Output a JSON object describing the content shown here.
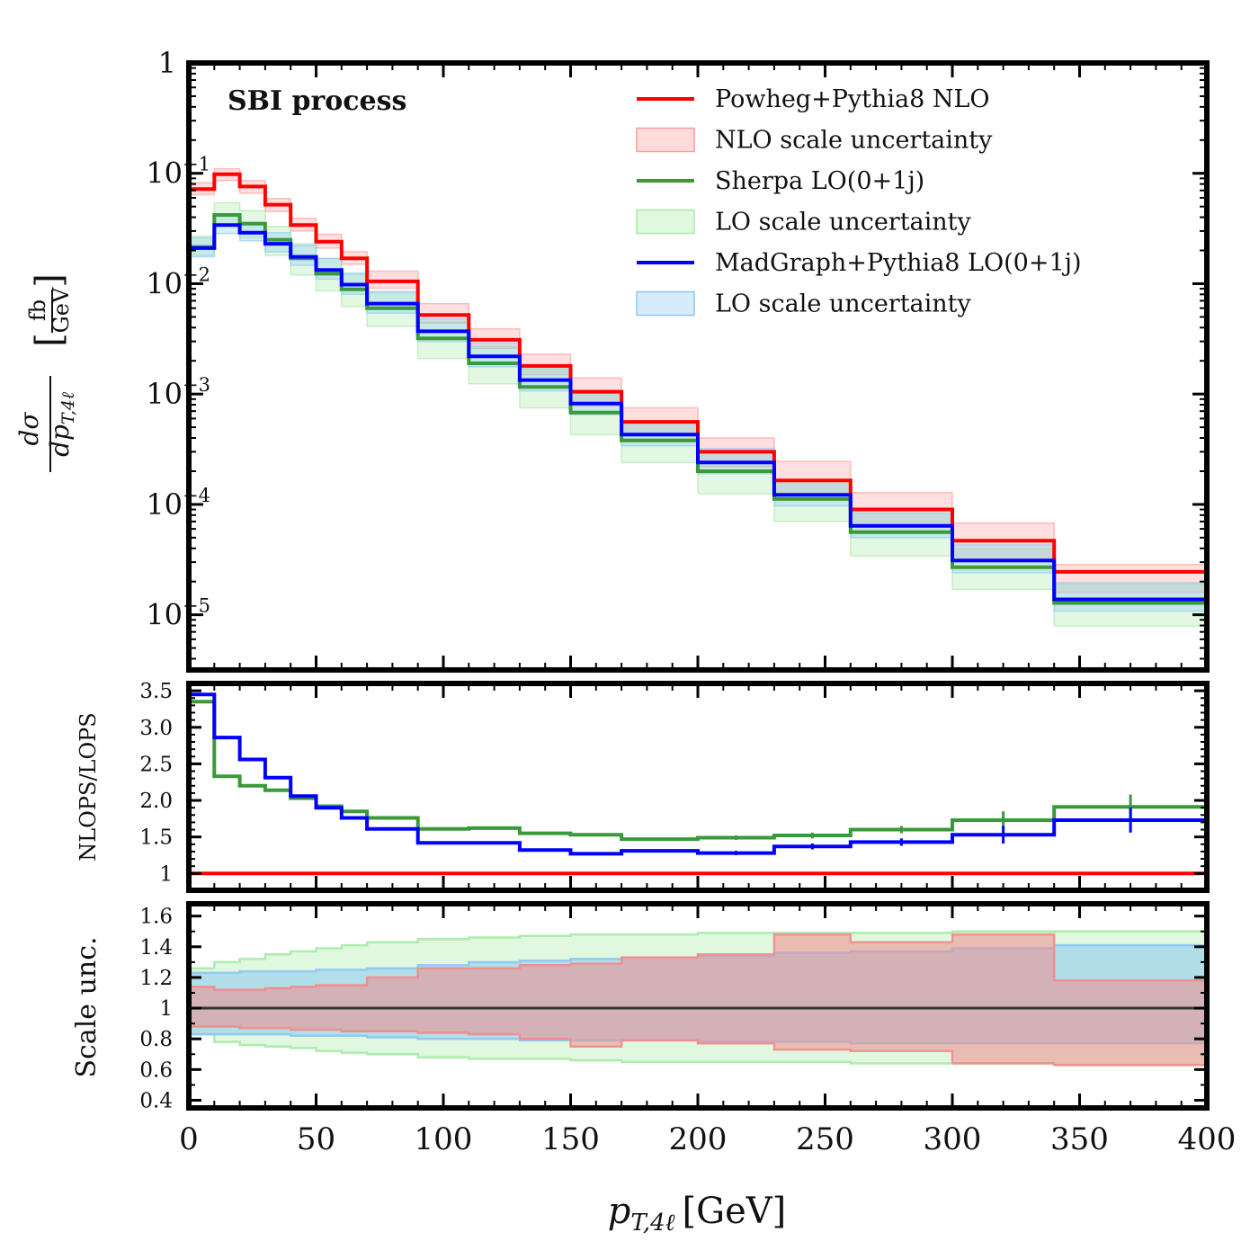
{
  "figure": {
    "xaxis_label": "p",
    "xaxis_label_sub": "T,4ℓ",
    "xaxis_label_unit": "[GeV]"
  },
  "chart_data": [
    {
      "type": "line",
      "title": "SBI process",
      "ylabel_num": "dσ",
      "ylabel_den": "dp",
      "ylabel_den_sub": "T,4ℓ",
      "ylabel_unit_num": "fb",
      "ylabel_unit_den": "GeV",
      "xlim": [
        0,
        400
      ],
      "ylim_log10": [
        -5.5,
        0
      ],
      "x_ticks": [
        0,
        50,
        100,
        150,
        200,
        250,
        300,
        350,
        400
      ],
      "x_tick_labels": [
        "0",
        "50",
        "100",
        "150",
        "200",
        "250",
        "300",
        "350",
        "400"
      ],
      "y_ticks": [
        {
          "value": 1,
          "label": "1",
          "exp": ""
        },
        {
          "value": 0.1,
          "label": "10",
          "exp": "−1"
        },
        {
          "value": 0.01,
          "label": "10",
          "exp": "−2"
        },
        {
          "value": 0.001,
          "label": "10",
          "exp": "−3"
        },
        {
          "value": 0.0001,
          "label": "10",
          "exp": "−4"
        },
        {
          "value": 1e-05,
          "label": "10",
          "exp": "−5"
        }
      ],
      "bin_edges": [
        0,
        10,
        20,
        30,
        40,
        50,
        60,
        70,
        90,
        110,
        130,
        150,
        170,
        200,
        230,
        260,
        300,
        340,
        400
      ],
      "legend": [
        {
          "label": "Powheg+Pythia8 NLO",
          "kind": "line",
          "color": "#ff0000"
        },
        {
          "label": "NLO scale uncertainty",
          "kind": "band",
          "color": "#ff9a9a"
        },
        {
          "label": "Sherpa LO(0+1j)",
          "kind": "line",
          "color": "#3a9a3a"
        },
        {
          "label": "LO scale uncertainty",
          "kind": "band",
          "color": "#a6eaa6"
        },
        {
          "label": "MadGraph+Pythia8 LO(0+1j)",
          "kind": "line",
          "color": "#0000ff"
        },
        {
          "label": "LO scale uncertainty",
          "kind": "band",
          "color": "#8cc8f2"
        }
      ],
      "series": [
        {
          "name": "Powheg+Pythia8 NLO",
          "color": "#ff0000",
          "values": [
            0.072,
            0.098,
            0.076,
            0.052,
            0.034,
            0.024,
            0.017,
            0.0105,
            0.0052,
            0.0031,
            0.0018,
            0.00105,
            0.00056,
            0.0003,
            0.000165,
            9e-05,
            4.7e-05,
            2.45e-05
          ],
          "band_lo": [
            0.064,
            0.086,
            0.066,
            0.045,
            0.03,
            0.021,
            0.015,
            0.0091,
            0.0044,
            0.0026,
            0.0015,
            0.00078,
            0.00042,
            0.00022,
            0.00012,
            6.5e-05,
            3e-05,
            1.6e-05
          ],
          "band_hi": [
            0.082,
            0.11,
            0.086,
            0.059,
            0.039,
            0.028,
            0.0195,
            0.013,
            0.0066,
            0.0039,
            0.0023,
            0.0014,
            0.00075,
            0.0004,
            0.000245,
            0.000128,
            6.8e-05,
            2.85e-05
          ]
        },
        {
          "name": "Sherpa LO(0+1j)",
          "color": "#3a9a3a",
          "values": [
            0.0215,
            0.042,
            0.035,
            0.025,
            0.017,
            0.0123,
            0.0089,
            0.006,
            0.0032,
            0.0019,
            0.00116,
            0.00068,
            0.00038,
            0.0002,
            0.000112,
            5.6e-05,
            2.7e-05,
            1.28e-05
          ],
          "band_lo": [
            0.018,
            0.033,
            0.026,
            0.018,
            0.012,
            0.0086,
            0.0062,
            0.0041,
            0.0021,
            0.00124,
            0.00075,
            0.00043,
            0.00024,
            0.000125,
            7e-05,
            3.4e-05,
            1.7e-05,
            7.9e-06
          ],
          "band_hi": [
            0.027,
            0.054,
            0.046,
            0.033,
            0.023,
            0.0168,
            0.0122,
            0.0083,
            0.0045,
            0.0027,
            0.0017,
            0.001,
            0.00056,
            0.0003,
            0.000167,
            8.3e-05,
            4e-05,
            1.9e-05
          ]
        },
        {
          "name": "MadGraph+Pythia8 LO(0+1j)",
          "color": "#0000ff",
          "values": [
            0.021,
            0.034,
            0.029,
            0.023,
            0.0175,
            0.0133,
            0.0098,
            0.0066,
            0.0037,
            0.0022,
            0.00134,
            0.00082,
            0.00043,
            0.00024,
            0.000122,
            6.4e-05,
            3.1e-05,
            1.38e-05
          ],
          "band_lo": [
            0.0175,
            0.0285,
            0.0245,
            0.0194,
            0.0147,
            0.011,
            0.008,
            0.0054,
            0.003,
            0.00177,
            0.00107,
            0.00065,
            0.00034,
            0.00019,
            9.7e-05,
            5e-05,
            2.4e-05,
            1.08e-05
          ],
          "band_hi": [
            0.026,
            0.042,
            0.036,
            0.029,
            0.0223,
            0.017,
            0.0125,
            0.0085,
            0.0048,
            0.0029,
            0.00175,
            0.00108,
            0.00057,
            0.00032,
            0.000165,
            8.8e-05,
            4.3e-05,
            1.95e-05
          ]
        }
      ]
    },
    {
      "type": "line",
      "ylabel": "NLOPS/LOPS",
      "xlim": [
        0,
        400
      ],
      "ylim": [
        0.77,
        3.6
      ],
      "y_ticks": [
        1,
        1.5,
        2.0,
        2.5,
        3.0,
        3.5
      ],
      "y_tick_labels": [
        "1",
        "1.5",
        "2.0",
        "2.5",
        "3.0",
        "3.5"
      ],
      "bin_edges": [
        0,
        10,
        20,
        30,
        40,
        50,
        60,
        70,
        90,
        110,
        130,
        150,
        170,
        200,
        230,
        260,
        300,
        340,
        400
      ],
      "series": [
        {
          "name": "Powheg+Pythia8 NLO / LOPS",
          "color": "#ff0000",
          "values": [
            1,
            1,
            1,
            1,
            1,
            1,
            1,
            1,
            1,
            1,
            1,
            1,
            1,
            1,
            1,
            1,
            1,
            1
          ]
        },
        {
          "name": "Powheg/Sherpa",
          "color": "#3a9a3a",
          "values": [
            3.35,
            2.33,
            2.2,
            2.14,
            2.03,
            1.92,
            1.85,
            1.76,
            1.61,
            1.62,
            1.55,
            1.53,
            1.47,
            1.49,
            1.52,
            1.6,
            1.73,
            1.91
          ],
          "err": [
            0,
            0,
            0,
            0,
            0,
            0,
            0,
            0,
            0,
            0,
            0,
            0,
            0.02,
            0.03,
            0.04,
            0.05,
            0.12,
            0.17
          ]
        },
        {
          "name": "Powheg/MadGraph",
          "color": "#0000ff",
          "values": [
            3.45,
            2.86,
            2.56,
            2.31,
            2.06,
            1.9,
            1.76,
            1.61,
            1.42,
            1.42,
            1.32,
            1.27,
            1.31,
            1.28,
            1.37,
            1.43,
            1.53,
            1.73
          ],
          "err": [
            0,
            0,
            0,
            0,
            0,
            0,
            0,
            0,
            0,
            0,
            0,
            0,
            0.02,
            0.03,
            0.04,
            0.05,
            0.12,
            0.17
          ]
        }
      ]
    },
    {
      "type": "area",
      "ylabel": "Scale unc.",
      "xlim": [
        0,
        400
      ],
      "ylim": [
        0.35,
        1.68
      ],
      "y_ticks": [
        0.4,
        0.6,
        0.8,
        1,
        1.2,
        1.4,
        1.6
      ],
      "y_tick_labels": [
        "0.4",
        "0.6",
        "0.8",
        "1",
        "1.2",
        "1.4",
        "1.6"
      ],
      "bin_edges": [
        0,
        10,
        20,
        30,
        40,
        50,
        60,
        70,
        90,
        110,
        130,
        150,
        170,
        200,
        230,
        260,
        300,
        340,
        400
      ],
      "reference_line": 1,
      "bands": [
        {
          "name": "Sherpa LO scale uncertainty",
          "color": "#a6eaa6",
          "lo": [
            0.83,
            0.78,
            0.76,
            0.75,
            0.74,
            0.72,
            0.71,
            0.7,
            0.68,
            0.67,
            0.67,
            0.66,
            0.65,
            0.65,
            0.65,
            0.64,
            0.64,
            0.63
          ],
          "hi": [
            1.26,
            1.3,
            1.32,
            1.35,
            1.37,
            1.39,
            1.41,
            1.43,
            1.45,
            1.46,
            1.47,
            1.48,
            1.48,
            1.49,
            1.49,
            1.49,
            1.5,
            1.5
          ]
        },
        {
          "name": "MadGraph LO scale uncertainty",
          "color": "#8cc8f2",
          "lo": [
            0.83,
            0.83,
            0.83,
            0.83,
            0.82,
            0.82,
            0.82,
            0.81,
            0.8,
            0.8,
            0.79,
            0.79,
            0.79,
            0.78,
            0.78,
            0.77,
            0.77,
            0.77
          ],
          "hi": [
            1.23,
            1.23,
            1.24,
            1.24,
            1.24,
            1.25,
            1.25,
            1.26,
            1.28,
            1.3,
            1.31,
            1.32,
            1.33,
            1.34,
            1.36,
            1.37,
            1.39,
            1.41
          ]
        },
        {
          "name": "NLO scale uncertainty",
          "color": "#f08c8c",
          "lo": [
            0.88,
            0.88,
            0.87,
            0.87,
            0.86,
            0.86,
            0.85,
            0.85,
            0.84,
            0.83,
            0.8,
            0.75,
            0.79,
            0.77,
            0.73,
            0.72,
            0.64,
            0.63
          ],
          "hi": [
            1.14,
            1.12,
            1.12,
            1.13,
            1.14,
            1.15,
            1.15,
            1.2,
            1.26,
            1.26,
            1.28,
            1.29,
            1.33,
            1.35,
            1.48,
            1.43,
            1.48,
            1.18
          ]
        }
      ]
    }
  ]
}
